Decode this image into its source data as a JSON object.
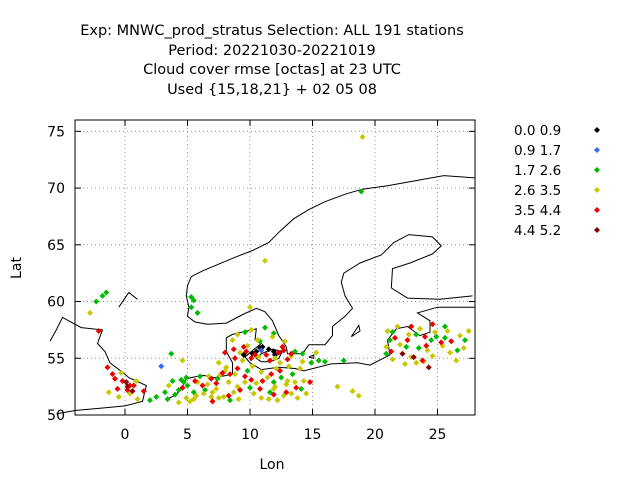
{
  "chart_data": {
    "type": "scatter",
    "title": [
      "Exp: MNWC_prod_stratus   Selection: ALL    191 stations",
      "Period: 20221030-20221019",
      "Cloud cover rmse [octas] at  23 UTC",
      "Used {15,18,21} + 02 05 08"
    ],
    "xlabel": "Lon",
    "ylabel": "Lat",
    "xlim": [
      -4,
      28
    ],
    "ylim": [
      50,
      76
    ],
    "xticks": [
      0,
      5,
      10,
      15,
      20,
      25
    ],
    "yticks": [
      50,
      55,
      60,
      65,
      70,
      75
    ],
    "grid": true,
    "grid_style": "dotted",
    "legend_position": "right",
    "series": [
      {
        "name": "0.0 0.9",
        "color": "#000000",
        "points": [
          [
            9.5,
            55.3
          ],
          [
            10.8,
            55.9
          ],
          [
            11.9,
            55.6
          ],
          [
            11.5,
            55.8
          ],
          [
            10.5,
            55.6
          ],
          [
            10.2,
            55.4
          ],
          [
            11.0,
            56.0
          ],
          [
            12.0,
            55.3
          ]
        ]
      },
      {
        "name": "0.9 1.7",
        "color": "#3366ff",
        "points": [
          [
            2.9,
            54.3
          ],
          [
            10.9,
            55.7
          ]
        ]
      },
      {
        "name": "1.7 2.6",
        "color": "#00bb00",
        "points": [
          [
            -1.8,
            60.5
          ],
          [
            -1.5,
            60.8
          ],
          [
            -2.3,
            60.0
          ],
          [
            5.3,
            60.4
          ],
          [
            5.5,
            60.1
          ],
          [
            5.3,
            59.5
          ],
          [
            5.8,
            59.0
          ],
          [
            18.9,
            69.7
          ],
          [
            11.2,
            57.7
          ],
          [
            10.8,
            56.5
          ],
          [
            9.6,
            57.3
          ],
          [
            11.9,
            57.2
          ],
          [
            13.6,
            55.6
          ],
          [
            14.2,
            55.4
          ],
          [
            14.9,
            54.6
          ],
          [
            15.5,
            54.8
          ],
          [
            16.0,
            54.7
          ],
          [
            17.5,
            54.8
          ],
          [
            4.0,
            51.8
          ],
          [
            4.3,
            52.2
          ],
          [
            4.7,
            52.9
          ],
          [
            5.0,
            52.6
          ],
          [
            5.5,
            52.0
          ],
          [
            6.0,
            53.4
          ],
          [
            6.4,
            52.2
          ],
          [
            3.4,
            51.4
          ],
          [
            3.8,
            53.0
          ],
          [
            3.2,
            52.0
          ],
          [
            3.7,
            55.4
          ],
          [
            4.5,
            53.1
          ],
          [
            4.9,
            53.3
          ],
          [
            8.4,
            51.3
          ],
          [
            10.0,
            52.4
          ],
          [
            9.8,
            53.9
          ],
          [
            12.5,
            53.3
          ],
          [
            11.9,
            52.9
          ],
          [
            13.4,
            53.6
          ],
          [
            14.1,
            52.3
          ],
          [
            20.9,
            55.4
          ],
          [
            21.2,
            56.6
          ],
          [
            22.5,
            56.0
          ],
          [
            23.5,
            55.9
          ],
          [
            24.5,
            56.6
          ],
          [
            25.6,
            56.8
          ],
          [
            26.6,
            55.7
          ],
          [
            25.6,
            57.8
          ],
          [
            27.2,
            56.6
          ],
          [
            24.9,
            56.9
          ],
          [
            21.4,
            57.3
          ],
          [
            23.3,
            57.1
          ],
          [
            2.0,
            51.3
          ],
          [
            2.5,
            51.6
          ],
          [
            11.6,
            52.0
          ],
          [
            7.4,
            53.2
          ]
        ]
      },
      {
        "name": "2.6 3.5",
        "color": "#c8c800",
        "points": [
          [
            19.0,
            74.5
          ],
          [
            11.2,
            63.6
          ],
          [
            -2.8,
            59.0
          ],
          [
            10.0,
            59.5
          ],
          [
            8.1,
            54.2
          ],
          [
            8.8,
            53.6
          ],
          [
            9.4,
            54.8
          ],
          [
            9.0,
            52.5
          ],
          [
            7.6,
            53.5
          ],
          [
            8.3,
            52.9
          ],
          [
            7.0,
            52.0
          ],
          [
            7.9,
            51.6
          ],
          [
            9.1,
            51.4
          ],
          [
            10.3,
            51.9
          ],
          [
            10.9,
            51.5
          ],
          [
            11.5,
            51.4
          ],
          [
            12.2,
            51.3
          ],
          [
            12.7,
            51.7
          ],
          [
            13.3,
            51.9
          ],
          [
            13.8,
            51.5
          ],
          [
            14.5,
            51.9
          ],
          [
            12.0,
            52.5
          ],
          [
            12.9,
            52.7
          ],
          [
            13.6,
            52.9
          ],
          [
            14.3,
            53.0
          ],
          [
            10.5,
            52.8
          ],
          [
            11.4,
            53.3
          ],
          [
            10.9,
            53.8
          ],
          [
            12.1,
            54.1
          ],
          [
            13.1,
            54.3
          ],
          [
            12.4,
            54.6
          ],
          [
            14.0,
            54.1
          ],
          [
            6.9,
            51.6
          ],
          [
            6.3,
            51.9
          ],
          [
            5.7,
            51.7
          ],
          [
            4.9,
            51.5
          ],
          [
            4.3,
            51.1
          ],
          [
            5.2,
            51.2
          ],
          [
            6.6,
            52.7
          ],
          [
            7.3,
            52.3
          ],
          [
            8.7,
            52.0
          ],
          [
            9.6,
            52.9
          ],
          [
            8.0,
            53.9
          ],
          [
            6.7,
            53.4
          ],
          [
            5.8,
            52.9
          ],
          [
            7.5,
            54.6
          ],
          [
            9.2,
            55.5
          ],
          [
            9.8,
            56.1
          ],
          [
            10.6,
            56.6
          ],
          [
            8.6,
            56.6
          ],
          [
            9.0,
            57.1
          ],
          [
            10.1,
            57.5
          ],
          [
            11.8,
            56.9
          ],
          [
            12.8,
            56.5
          ],
          [
            12.0,
            55.0
          ],
          [
            13.3,
            55.2
          ],
          [
            14.2,
            54.7
          ],
          [
            15.3,
            55.5
          ],
          [
            3.5,
            52.6
          ],
          [
            -1.3,
            52.0
          ],
          [
            -0.5,
            51.6
          ],
          [
            0.4,
            51.9
          ],
          [
            1.0,
            51.4
          ],
          [
            0.9,
            53.0
          ],
          [
            -0.3,
            53.7
          ],
          [
            18.2,
            52.1
          ],
          [
            17.0,
            52.5
          ],
          [
            18.7,
            51.7
          ],
          [
            21.0,
            57.4
          ],
          [
            21.8,
            57.8
          ],
          [
            22.7,
            57.1
          ],
          [
            23.6,
            57.6
          ],
          [
            24.8,
            57.3
          ],
          [
            25.8,
            57.4
          ],
          [
            26.8,
            57.0
          ],
          [
            27.5,
            57.4
          ],
          [
            25.4,
            56.1
          ],
          [
            24.2,
            55.7
          ],
          [
            22.9,
            55.1
          ],
          [
            21.4,
            54.9
          ],
          [
            23.3,
            54.6
          ],
          [
            24.6,
            55.2
          ],
          [
            26.0,
            55.5
          ],
          [
            27.1,
            55.9
          ],
          [
            22.0,
            56.2
          ],
          [
            20.9,
            56.0
          ],
          [
            23.9,
            54.7
          ],
          [
            22.4,
            54.5
          ],
          [
            26.5,
            54.8
          ],
          [
            10.7,
            55.1
          ],
          [
            10.2,
            54.3
          ],
          [
            11.9,
            52.3
          ],
          [
            13.0,
            53.0
          ],
          [
            7.5,
            51.5
          ],
          [
            5.5,
            51.4
          ],
          [
            4.6,
            54.8
          ]
        ]
      },
      {
        "name": "3.5 4.4",
        "color": "#ee0000",
        "points": [
          [
            -2.1,
            57.4
          ],
          [
            -1.4,
            54.2
          ],
          [
            -1.0,
            53.6
          ],
          [
            -0.8,
            53.2
          ],
          [
            -0.2,
            53.0
          ],
          [
            0.4,
            52.6
          ],
          [
            -0.6,
            52.3
          ],
          [
            0.2,
            52.2
          ],
          [
            4.6,
            52.4
          ],
          [
            5.6,
            53.0
          ],
          [
            6.2,
            52.6
          ],
          [
            6.9,
            53.2
          ],
          [
            8.3,
            51.7
          ],
          [
            9.2,
            52.2
          ],
          [
            9.6,
            53.4
          ],
          [
            10.1,
            53.1
          ],
          [
            10.8,
            52.3
          ],
          [
            11.0,
            53.0
          ],
          [
            11.7,
            53.6
          ],
          [
            12.4,
            53.9
          ],
          [
            13.0,
            54.9
          ],
          [
            12.7,
            55.7
          ],
          [
            11.3,
            55.3
          ],
          [
            10.1,
            55.0
          ],
          [
            9.0,
            54.1
          ],
          [
            8.8,
            55.0
          ],
          [
            8.0,
            55.5
          ],
          [
            9.5,
            56.0
          ],
          [
            9.7,
            55.6
          ],
          [
            10.4,
            55.3
          ],
          [
            11.6,
            54.8
          ],
          [
            12.3,
            55.5
          ],
          [
            12.6,
            56.0
          ],
          [
            13.3,
            55.4
          ],
          [
            14.8,
            52.9
          ],
          [
            13.7,
            52.4
          ],
          [
            12.9,
            52.0
          ],
          [
            11.9,
            51.8
          ],
          [
            7.3,
            52.8
          ],
          [
            8.4,
            53.6
          ],
          [
            7.8,
            53.7
          ],
          [
            21.6,
            56.8
          ],
          [
            22.9,
            57.8
          ],
          [
            24.0,
            56.9
          ],
          [
            25.3,
            56.4
          ],
          [
            24.1,
            56.1
          ],
          [
            22.6,
            56.6
          ],
          [
            24.6,
            58.0
          ],
          [
            26.1,
            56.5
          ],
          [
            23.8,
            54.8
          ],
          [
            21.3,
            55.6
          ],
          [
            8.7,
            55.8
          ],
          [
            7.0,
            51.2
          ],
          [
            1.5,
            52.1
          ],
          [
            0.7,
            52.6
          ]
        ]
      },
      {
        "name": "4.4 5.2",
        "color": "#8b0000",
        "points": [
          [
            0.1,
            52.9
          ],
          [
            0.2,
            52.5
          ],
          [
            0.6,
            52.1
          ],
          [
            22.2,
            55.4
          ],
          [
            24.3,
            54.2
          ],
          [
            23.1,
            55.1
          ]
        ]
      }
    ]
  }
}
